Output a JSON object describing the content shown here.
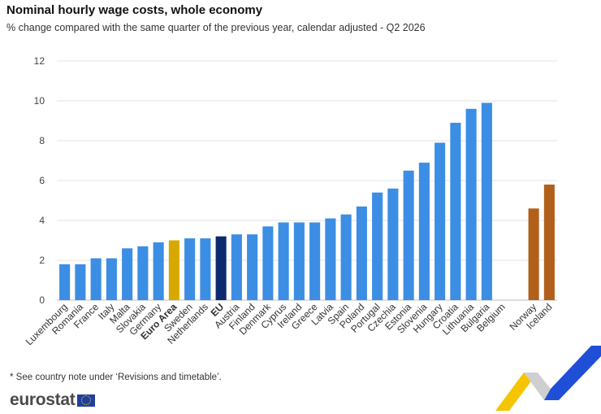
{
  "title": "Nominal hourly wage costs, whole economy",
  "subtitle": "% change compared with the same quarter of the previous year, calendar adjusted - Q2 2026",
  "note": "* See country note under ‘Revisions and timetable’.",
  "logo": {
    "text": "eurostat"
  },
  "colors": {
    "country": "#3c8ee4",
    "euro_area": "#d7a900",
    "eu": "#0e2a6e",
    "efta": "#b1601b",
    "grid": "#e3e3e3",
    "axis_text": "#444444"
  },
  "chart_data": {
    "type": "bar",
    "title": "Nominal hourly wage costs, whole economy",
    "subtitle": "% change compared with the same quarter of the previous year, calendar adjusted - Q2 2026",
    "ylim": [
      0,
      12
    ],
    "yticks": [
      0,
      2,
      4,
      6,
      8,
      10,
      12
    ],
    "grid": true,
    "categories": [
      "Luxembourg",
      "Romania",
      "France",
      "Italy",
      "Malta",
      "Slovakia",
      "Germany",
      "Euro Area",
      "Sweden",
      "Netherlands",
      "EU",
      "Austria",
      "Finland",
      "Denmark",
      "Cyprus",
      "Ireland",
      "Greece",
      "Latvia",
      "Spain",
      "Poland",
      "Portugal",
      "Czechia",
      "Estonia",
      "Slovenia",
      "Hungary",
      "Croatia",
      "Lithuania",
      "Bulgaria",
      "Belgium",
      "",
      "Norway",
      "Iceland"
    ],
    "values": [
      1.8,
      1.8,
      2.1,
      2.1,
      2.6,
      2.7,
      2.9,
      3.0,
      3.1,
      3.1,
      3.2,
      3.3,
      3.3,
      3.7,
      3.9,
      3.9,
      3.9,
      4.1,
      4.3,
      4.7,
      5.4,
      5.6,
      6.5,
      6.9,
      7.9,
      8.9,
      9.6,
      9.9,
      null,
      null,
      4.6,
      5.8
    ],
    "groups": [
      "country",
      "country",
      "country",
      "country",
      "country",
      "country",
      "country",
      "euro_area",
      "country",
      "country",
      "eu",
      "country",
      "country",
      "country",
      "country",
      "country",
      "country",
      "country",
      "country",
      "country",
      "country",
      "country",
      "country",
      "country",
      "country",
      "country",
      "country",
      "country",
      "country",
      "gap",
      "efta",
      "efta"
    ],
    "bold_labels": [
      "Euro Area",
      "EU"
    ]
  }
}
